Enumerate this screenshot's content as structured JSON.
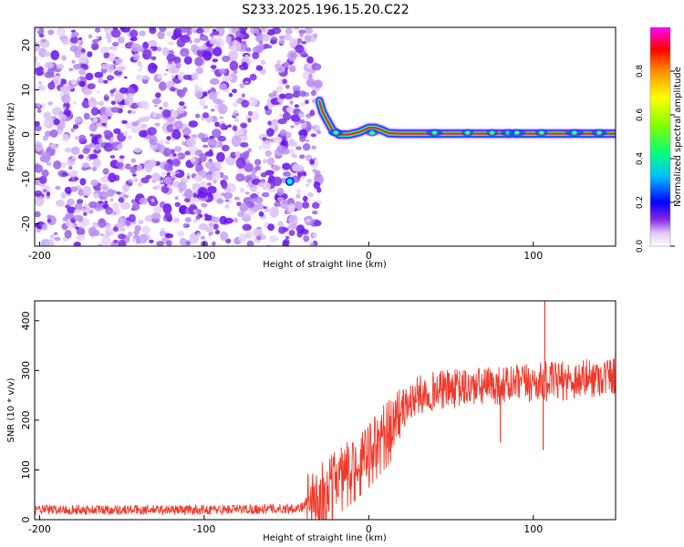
{
  "title": "S233.2025.196.15.20.C22",
  "chart_data": [
    {
      "type": "heatmap",
      "xlabel": "Height of straight line (km)",
      "ylabel": "Frequency (Hz)",
      "xlim": [
        -203,
        150
      ],
      "ylim": [
        -25,
        24
      ],
      "xticks": [
        -200,
        -100,
        0,
        100
      ],
      "yticks": [
        20,
        10,
        0,
        -10,
        -20
      ],
      "grid": false,
      "noise_region_x": [
        -203,
        -30
      ],
      "signal_trace": [
        {
          "x": -30,
          "y": 7.5
        },
        {
          "x": -28,
          "y": 5
        },
        {
          "x": -25,
          "y": 3
        },
        {
          "x": -22,
          "y": 1
        },
        {
          "x": -18,
          "y": 0
        },
        {
          "x": -12,
          "y": 0
        },
        {
          "x": -6,
          "y": 0.5
        },
        {
          "x": 0,
          "y": 1.5
        },
        {
          "x": 4,
          "y": 1.5
        },
        {
          "x": 8,
          "y": 1
        },
        {
          "x": 12,
          "y": 0.3
        },
        {
          "x": 20,
          "y": 0.2
        },
        {
          "x": 60,
          "y": 0.2
        },
        {
          "x": 100,
          "y": 0.2
        },
        {
          "x": 150,
          "y": 0.2
        }
      ],
      "colorbar": {
        "label": "Normalized spectral amplitude",
        "ticks": [
          0.0,
          0.2,
          0.4,
          0.6,
          0.8
        ],
        "range": [
          0,
          1
        ]
      }
    },
    {
      "type": "line",
      "xlabel": "Height of straight line (km)",
      "ylabel": "SNR (10 * v/v)",
      "xlim": [
        -203,
        150
      ],
      "ylim": [
        0,
        440
      ],
      "xticks": [
        -200,
        -100,
        0,
        100
      ],
      "yticks": [
        0,
        100,
        200,
        300,
        400
      ],
      "grid": false,
      "color": "#ee3a2d",
      "envelope": [
        {
          "x": -203,
          "y": 20
        },
        {
          "x": -150,
          "y": 20
        },
        {
          "x": -100,
          "y": 20
        },
        {
          "x": -50,
          "y": 22
        },
        {
          "x": -40,
          "y": 25
        },
        {
          "x": -35,
          "y": 50
        },
        {
          "x": -30,
          "y": 55
        },
        {
          "x": -25,
          "y": 70
        },
        {
          "x": -20,
          "y": 85
        },
        {
          "x": -10,
          "y": 110
        },
        {
          "x": 0,
          "y": 140
        },
        {
          "x": 10,
          "y": 180
        },
        {
          "x": 20,
          "y": 220
        },
        {
          "x": 30,
          "y": 250
        },
        {
          "x": 40,
          "y": 260
        },
        {
          "x": 60,
          "y": 265
        },
        {
          "x": 80,
          "y": 270
        },
        {
          "x": 100,
          "y": 275
        },
        {
          "x": 120,
          "y": 280
        },
        {
          "x": 150,
          "y": 290
        }
      ],
      "annotations": [
        {
          "x": 107,
          "y": 440,
          "note": "max spike"
        },
        {
          "x": 80,
          "y": 155,
          "note": "dip"
        },
        {
          "x": 106,
          "y": 140,
          "note": "dip"
        }
      ]
    }
  ]
}
